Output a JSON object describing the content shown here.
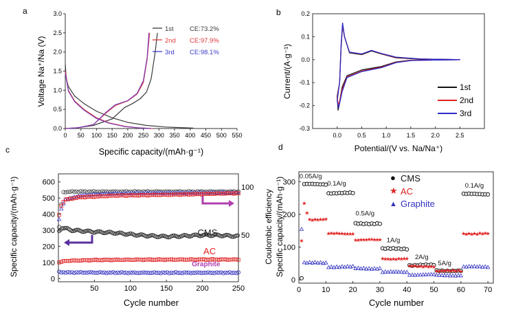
{
  "chart_data": [
    {
      "panel": "a",
      "type": "line",
      "xlabel": "Specific capacity/(mAh·g⁻¹)",
      "ylabel": "Voltage Na⁺/Na (V)",
      "xlim": [
        0,
        550
      ],
      "ylim": [
        0,
        3.0
      ],
      "xticks": [
        "0",
        "50",
        "100",
        "150",
        "200",
        "250",
        "300",
        "350",
        "400",
        "450",
        "500",
        "550"
      ],
      "yticks": [
        "0.0",
        "0.5",
        "1.0",
        "1.5",
        "2.0",
        "2.5",
        "3.0"
      ],
      "legend_position": "top-right",
      "legend": [
        {
          "label": "1st",
          "ce": "CE:73.2%",
          "color": "#3a3a3a"
        },
        {
          "label": "2nd",
          "ce": "CE:97.9%",
          "color": "#e03a3a"
        },
        {
          "label": "3rd",
          "ce": "CE:98.1%",
          "color": "#3a3ac8"
        }
      ],
      "series": [
        {
          "color": "#3a3a3a",
          "points": [
            [
              0,
              1.7
            ],
            [
              3,
              1.3
            ],
            [
              10,
              1.1
            ],
            [
              30,
              0.85
            ],
            [
              60,
              0.65
            ],
            [
              100,
              0.45
            ],
            [
              150,
              0.28
            ],
            [
              200,
              0.16
            ],
            [
              260,
              0.08
            ],
            [
              320,
              0.04
            ],
            [
              380,
              0.02
            ],
            [
              410,
              0.01
            ]
          ]
        },
        {
          "color": "#3a3a3a",
          "points": [
            [
              0,
              0.0
            ],
            [
              40,
              0.02
            ],
            [
              90,
              0.08
            ],
            [
              150,
              0.25
            ],
            [
              190,
              0.55
            ],
            [
              215,
              0.65
            ],
            [
              240,
              0.78
            ],
            [
              260,
              0.95
            ],
            [
              275,
              1.3
            ],
            [
              288,
              2.0
            ],
            [
              295,
              2.5
            ]
          ]
        },
        {
          "color": "#e03a3a",
          "points": [
            [
              0,
              1.5
            ],
            [
              10,
              1.0
            ],
            [
              30,
              0.72
            ],
            [
              60,
              0.5
            ],
            [
              100,
              0.28
            ],
            [
              140,
              0.15
            ],
            [
              190,
              0.06
            ],
            [
              230,
              0.02
            ],
            [
              280,
              0.0
            ]
          ]
        },
        {
          "color": "#e03a3a",
          "points": [
            [
              0,
              0.0
            ],
            [
              40,
              0.02
            ],
            [
              90,
              0.1
            ],
            [
              130,
              0.4
            ],
            [
              160,
              0.6
            ],
            [
              200,
              0.72
            ],
            [
              230,
              0.9
            ],
            [
              250,
              1.2
            ],
            [
              262,
              1.8
            ],
            [
              270,
              2.5
            ]
          ]
        },
        {
          "color": "#7a3ab8",
          "points": [
            [
              0,
              1.45
            ],
            [
              10,
              0.98
            ],
            [
              30,
              0.7
            ],
            [
              60,
              0.48
            ],
            [
              100,
              0.26
            ],
            [
              140,
              0.14
            ],
            [
              190,
              0.05
            ],
            [
              230,
              0.02
            ],
            [
              275,
              0.0
            ]
          ]
        },
        {
          "color": "#7a3ab8",
          "points": [
            [
              0,
              0.0
            ],
            [
              40,
              0.02
            ],
            [
              90,
              0.1
            ],
            [
              130,
              0.42
            ],
            [
              160,
              0.62
            ],
            [
              200,
              0.73
            ],
            [
              230,
              0.92
            ],
            [
              250,
              1.25
            ],
            [
              262,
              1.85
            ],
            [
              268,
              2.5
            ]
          ]
        }
      ]
    },
    {
      "panel": "b",
      "type": "line",
      "xlabel": "Potential/(V vs. Na/Na⁺)",
      "ylabel": "Current/(A·g⁻¹)",
      "xlim": [
        -0.5,
        3.0
      ],
      "ylim": [
        -0.3,
        0.2
      ],
      "xticks": [
        "0.0",
        "0.5",
        "1.0",
        "1.5",
        "2.0",
        "2.5"
      ],
      "xtick_values": [
        0,
        0.5,
        1,
        1.5,
        2,
        2.5
      ],
      "yticks": [
        "-0.3",
        "-0.2",
        "-0.1",
        "0.0",
        "0.1",
        "0.2"
      ],
      "ytick_values": [
        -0.3,
        -0.2,
        -0.1,
        0,
        0.1,
        0.2
      ],
      "legend_position": "bottom-right",
      "legend": [
        {
          "label": "1st",
          "color": "#111111"
        },
        {
          "label": "2nd",
          "color": "#e02020"
        },
        {
          "label": "3rd",
          "color": "#2a2ac8"
        }
      ],
      "series": [
        {
          "color": "#111111",
          "points": [
            [
              0.0,
              -0.16
            ],
            [
              0.05,
              -0.1
            ],
            [
              0.08,
              0.05
            ],
            [
              0.11,
              0.15
            ],
            [
              0.15,
              0.1
            ],
            [
              0.25,
              0.03
            ],
            [
              0.5,
              0.022
            ],
            [
              0.7,
              0.038
            ],
            [
              0.9,
              0.025
            ],
            [
              1.2,
              0.008
            ],
            [
              1.7,
              0.002
            ],
            [
              2.5,
              0.0
            ],
            [
              1.5,
              -0.002
            ],
            [
              1.2,
              -0.01
            ],
            [
              0.9,
              -0.03
            ],
            [
              0.5,
              -0.045
            ],
            [
              0.2,
              -0.07
            ],
            [
              0.1,
              -0.12
            ],
            [
              0.02,
              -0.22
            ],
            [
              0.0,
              -0.16
            ]
          ]
        },
        {
          "color": "#e02020",
          "points": [
            [
              0.0,
              -0.17
            ],
            [
              0.05,
              -0.1
            ],
            [
              0.08,
              0.06
            ],
            [
              0.11,
              0.15
            ],
            [
              0.15,
              0.1
            ],
            [
              0.25,
              0.032
            ],
            [
              0.5,
              0.024
            ],
            [
              0.7,
              0.04
            ],
            [
              0.9,
              0.026
            ],
            [
              1.2,
              0.01
            ],
            [
              1.7,
              0.003
            ],
            [
              2.5,
              0.0
            ],
            [
              1.5,
              -0.003
            ],
            [
              1.2,
              -0.012
            ],
            [
              0.9,
              -0.033
            ],
            [
              0.5,
              -0.05
            ],
            [
              0.2,
              -0.075
            ],
            [
              0.1,
              -0.13
            ],
            [
              0.03,
              -0.2
            ],
            [
              0.0,
              -0.17
            ]
          ]
        },
        {
          "color": "#2a2ac8",
          "points": [
            [
              0.0,
              -0.18
            ],
            [
              0.05,
              -0.1
            ],
            [
              0.08,
              0.06
            ],
            [
              0.11,
              0.16
            ],
            [
              0.15,
              0.1
            ],
            [
              0.25,
              0.033
            ],
            [
              0.5,
              0.025
            ],
            [
              0.7,
              0.04
            ],
            [
              0.9,
              0.027
            ],
            [
              1.2,
              0.011
            ],
            [
              1.7,
              0.003
            ],
            [
              2.5,
              0.0
            ],
            [
              1.5,
              -0.004
            ],
            [
              1.2,
              -0.013
            ],
            [
              0.9,
              -0.035
            ],
            [
              0.5,
              -0.052
            ],
            [
              0.2,
              -0.078
            ],
            [
              0.1,
              -0.14
            ],
            [
              0.03,
              -0.21
            ],
            [
              0.0,
              -0.18
            ]
          ]
        }
      ]
    },
    {
      "panel": "c",
      "type": "scatter",
      "xlabel": "Cycle number",
      "ylabel": "Specific capacity/(mAh·g⁻¹)",
      "y2ticks": [
        "100",
        "50"
      ],
      "xlim": [
        0,
        250
      ],
      "ylim": [
        -20,
        650
      ],
      "xticks": [
        "50",
        "100",
        "150",
        "200",
        "250"
      ],
      "xtick_values": [
        50,
        100,
        150,
        200,
        250
      ],
      "yticks": [
        "0",
        "100",
        "200",
        "300",
        "400",
        "500",
        "600"
      ],
      "ytick_values": [
        0,
        100,
        200,
        300,
        400,
        500,
        600
      ],
      "annotations": [
        {
          "text": "CMS",
          "color": "#222222",
          "x": 207,
          "y": 265
        },
        {
          "text": "AC",
          "color": "#e02020",
          "x": 210,
          "y": 150
        },
        {
          "text": "Graphite",
          "color": "#b040b0",
          "x": 205,
          "y": 75
        }
      ],
      "series": [
        {
          "name": "CMS-coulombic",
          "marker": "circle-open",
          "color": "#444444",
          "anchors": [
            [
              1,
              320
            ],
            [
              3,
              420
            ],
            [
              6,
              536
            ],
            [
              20,
              540
            ],
            [
              100,
              540
            ],
            [
              250,
              540
            ]
          ]
        },
        {
          "name": "CMS",
          "marker": "circle-open",
          "color": "#222222",
          "anchors": [
            [
              1,
              300
            ],
            [
              5,
              320
            ],
            [
              20,
              300
            ],
            [
              50,
              285
            ],
            [
              100,
              275
            ],
            [
              150,
              265
            ],
            [
              200,
              265
            ],
            [
              250,
              262
            ]
          ]
        },
        {
          "name": "AC-coulombic",
          "marker": "triangle-open",
          "color": "#4040d0",
          "anchors": [
            [
              1,
              370
            ],
            [
              5,
              450
            ],
            [
              10,
              490
            ],
            [
              30,
              515
            ],
            [
              60,
              525
            ],
            [
              100,
              530
            ],
            [
              250,
              533
            ]
          ]
        },
        {
          "name": "AC",
          "marker": "square-open",
          "color": "#e02020",
          "anchors": [
            [
              1,
              395
            ],
            [
              5,
              470
            ],
            [
              10,
              490
            ],
            [
              30,
              505
            ],
            [
              80,
              515
            ],
            [
              150,
              520
            ],
            [
              250,
              530
            ]
          ]
        },
        {
          "name": "AC-capacity",
          "marker": "square-open",
          "color": "#e02020",
          "anchors": [
            [
              1,
              100
            ],
            [
              10,
              110
            ],
            [
              50,
              115
            ],
            [
              100,
              117
            ],
            [
              200,
              118
            ],
            [
              250,
              118
            ]
          ]
        },
        {
          "name": "Graphite",
          "marker": "circle-open",
          "color": "#3030c0",
          "anchors": [
            [
              1,
              40
            ],
            [
              10,
              38
            ],
            [
              100,
              36
            ],
            [
              250,
              36
            ]
          ]
        }
      ]
    },
    {
      "panel": "d",
      "type": "scatter",
      "xlabel": "Cycle number",
      "ylabel_lines": [
        "Coulombic efficiency",
        "Specific capacity/(mAh·g⁻¹)"
      ],
      "xlim": [
        0,
        72
      ],
      "ylim": [
        -10,
        330
      ],
      "xticks": [
        "0",
        "10",
        "20",
        "30",
        "40",
        "50",
        "60",
        "70"
      ],
      "xtick_values": [
        0,
        10,
        20,
        30,
        40,
        50,
        60,
        70
      ],
      "yticks": [
        "0",
        "100",
        "200",
        "300"
      ],
      "ytick_values": [
        0,
        100,
        200,
        300
      ],
      "legend_position": "top",
      "legend": [
        {
          "label": "CMS",
          "color": "#222222",
          "marker": "●"
        },
        {
          "label": "AC",
          "color": "#e02020",
          "marker": "★"
        },
        {
          "label": "Graphite",
          "color": "#3030c0",
          "marker": "▲"
        }
      ],
      "rate_labels": [
        {
          "text": "0.05A/g",
          "x": 0.2,
          "y": 310
        },
        {
          "text": "0.1A/g",
          "x": 10.5,
          "y": 288
        },
        {
          "text": "0.5A/g",
          "x": 21,
          "y": 197
        },
        {
          "text": "1A/g",
          "x": 32.5,
          "y": 115
        },
        {
          "text": "2A/g",
          "x": 43,
          "y": 63
        },
        {
          "text": "5A/g",
          "x": 51.5,
          "y": 45
        },
        {
          "text": "0.1A/g",
          "x": 61.5,
          "y": 282
        }
      ],
      "series": [
        {
          "name": "CMS",
          "marker": "circle",
          "color": "#222222",
          "segments": [
            [
              1,
              10,
              292
            ],
            [
              11,
              20,
              265
            ],
            [
              21,
              30,
              172
            ],
            [
              31,
              40,
              95
            ],
            [
              41,
              50,
              45
            ],
            [
              51,
              60,
              28
            ],
            [
              61,
              70,
              262
            ]
          ]
        },
        {
          "name": "AC",
          "marker": "star",
          "color": "#e02020",
          "segments": [
            [
              1,
              10,
              185
            ],
            [
              11,
              20,
              142
            ],
            [
              21,
              30,
              123
            ],
            [
              31,
              40,
              65
            ],
            [
              41,
              50,
              42
            ],
            [
              51,
              60,
              28
            ],
            [
              61,
              70,
              142
            ]
          ]
        },
        {
          "name": "Graphite",
          "marker": "triangle",
          "color": "#3030c0",
          "segments": [
            [
              1,
              10,
              52
            ],
            [
              11,
              20,
              40
            ],
            [
              21,
              30,
              35
            ],
            [
              31,
              40,
              24
            ],
            [
              41,
              50,
              16
            ],
            [
              51,
              60,
              14
            ],
            [
              61,
              70,
              40
            ]
          ]
        }
      ]
    }
  ],
  "panel_labels": [
    "a",
    "b",
    "c",
    "d"
  ],
  "axis_right_c": "100/50"
}
